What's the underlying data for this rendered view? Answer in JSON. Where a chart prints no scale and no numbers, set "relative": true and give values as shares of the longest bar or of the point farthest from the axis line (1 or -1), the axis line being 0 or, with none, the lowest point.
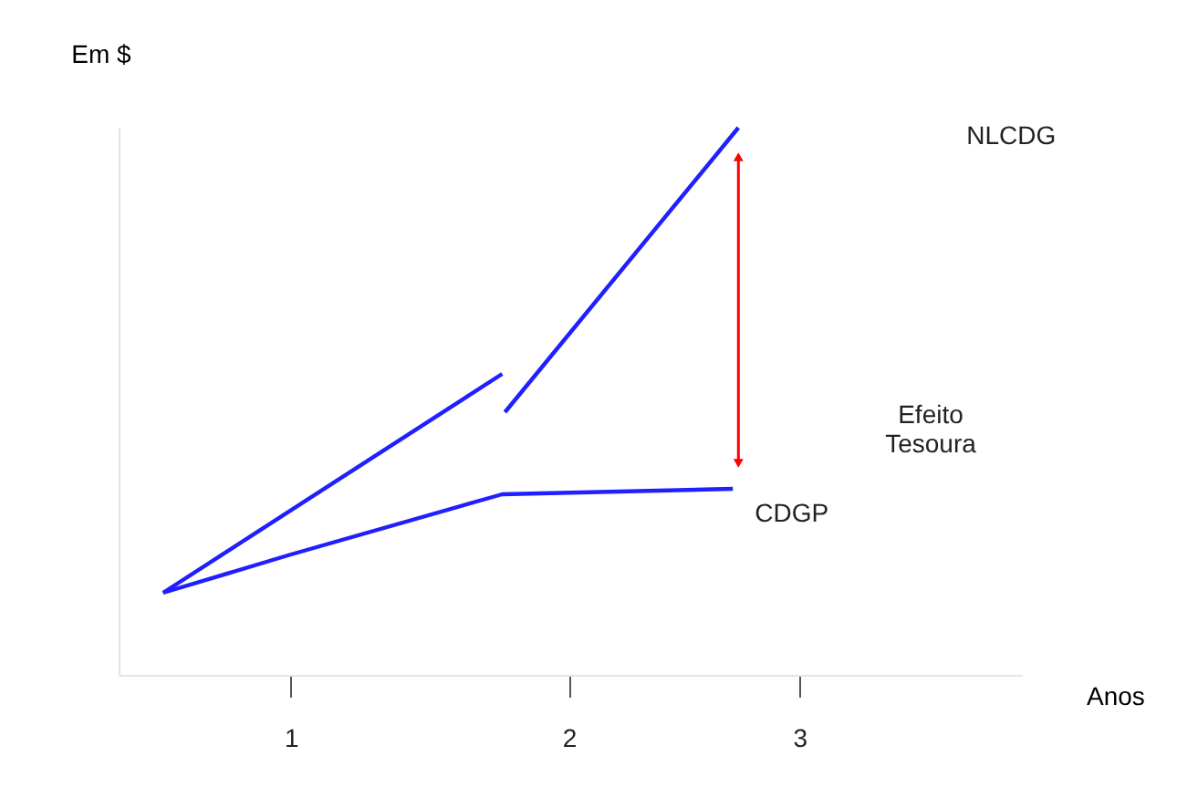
{
  "chart_data": {
    "type": "line",
    "relative": true,
    "xlabel": "Anos",
    "ylabel": "Em $",
    "xlim": [
      0.38,
      3.63
    ],
    "xticks": [
      1,
      2,
      {
        "value": 2.83,
        "label": "3"
      }
    ],
    "series": [
      {
        "name": "NLCDG",
        "color": "#1f1fff",
        "x": [
          0.54,
          1.76,
          1.765,
          1.77,
          2.61
        ],
        "values": [
          0.15,
          0.55,
          null,
          0.48,
          1
        ]
      },
      {
        "name": "CDGP",
        "color": "#1f1fff",
        "x": [
          0.54,
          1.0,
          1.76,
          2.59
        ],
        "values": [
          0.15,
          0.22,
          0.33,
          0.34
        ]
      }
    ],
    "annotations": [
      "Efeito Tesoura"
    ],
    "grid": false,
    "legend": false
  }
}
